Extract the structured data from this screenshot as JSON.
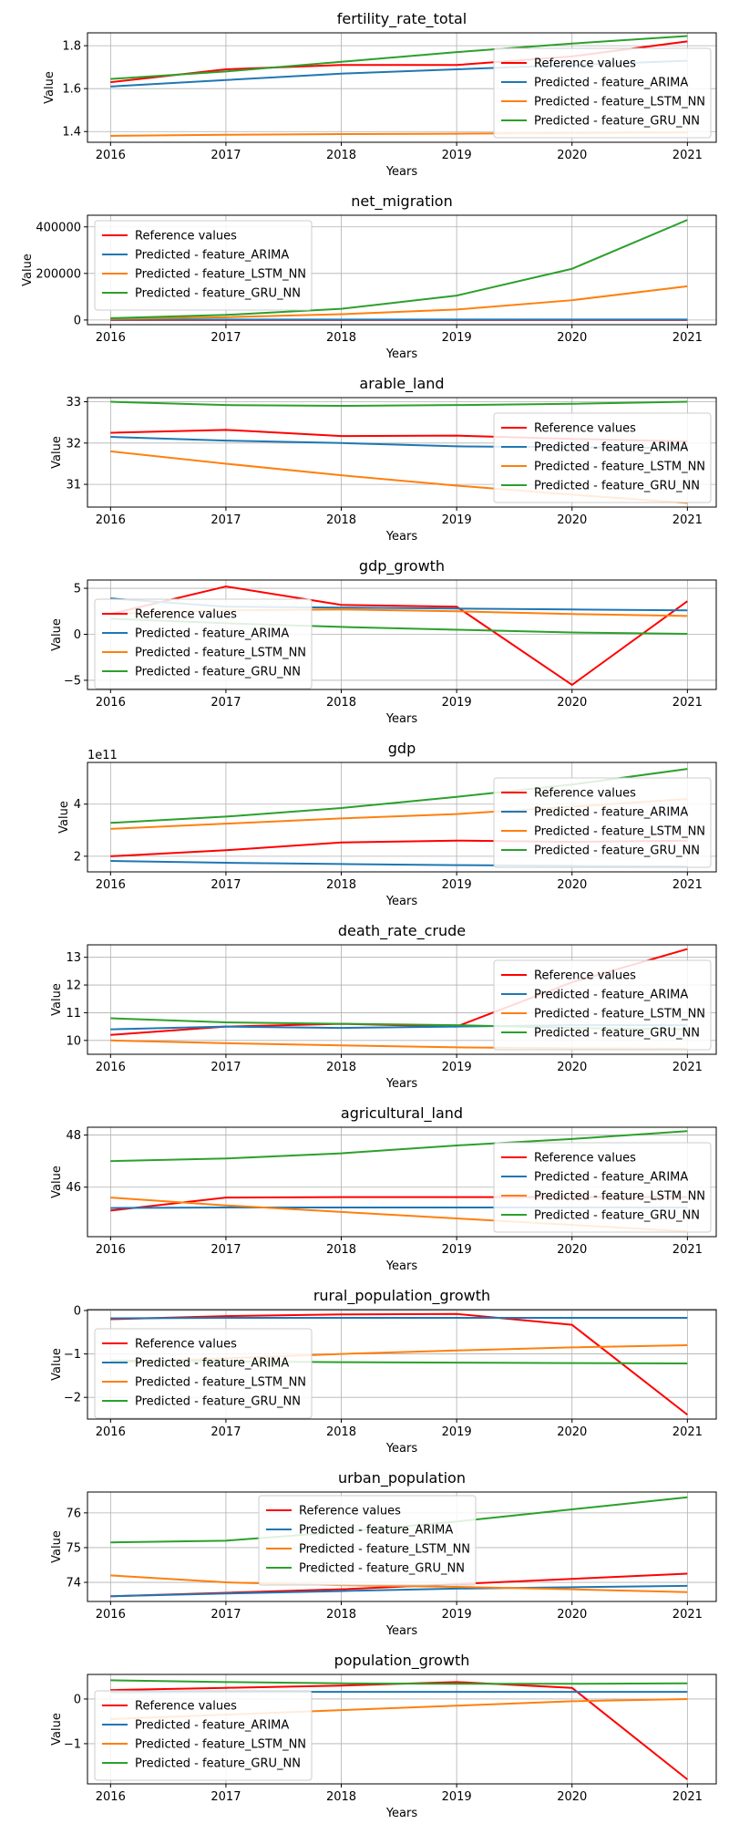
{
  "colors": {
    "reference": "#ff0000",
    "arima": "#1f77b4",
    "lstm": "#ff7f0e",
    "gru": "#2ca02c",
    "grid": "#b0b0b0",
    "axis": "#000000"
  },
  "chart_data": [
    {
      "type": "line",
      "title": "fertility_rate_total",
      "xlabel": "Years",
      "ylabel": "Value",
      "x": [
        2016,
        2017,
        2018,
        2019,
        2020,
        2021
      ],
      "xlim": [
        2015.8,
        2021.25
      ],
      "ylim": [
        1.35,
        1.86
      ],
      "yticks": [
        1.4,
        1.6,
        1.8
      ],
      "ytick_labels": [
        "1.4",
        "1.6",
        "1.8"
      ],
      "y_scale_label": "",
      "legend": "right",
      "grid": true,
      "series": [
        {
          "name": "Reference values",
          "key": "reference",
          "values": [
            1.63,
            1.69,
            1.71,
            1.71,
            1.75,
            1.82
          ]
        },
        {
          "name": "Predicted - feature_ARIMA",
          "key": "arima",
          "values": [
            1.61,
            1.64,
            1.67,
            1.69,
            1.71,
            1.73
          ]
        },
        {
          "name": "Predicted - feature_LSTM_NN",
          "key": "lstm",
          "values": [
            1.38,
            1.385,
            1.388,
            1.39,
            1.393,
            1.396
          ]
        },
        {
          "name": "Predicted - feature_GRU_NN",
          "key": "gru",
          "values": [
            1.645,
            1.68,
            1.725,
            1.77,
            1.81,
            1.845
          ]
        }
      ]
    },
    {
      "type": "line",
      "title": "net_migration",
      "xlabel": "Years",
      "ylabel": "Value",
      "x": [
        2016,
        2017,
        2018,
        2019,
        2020,
        2021
      ],
      "xlim": [
        2015.8,
        2021.25
      ],
      "ylim": [
        -20000,
        450000
      ],
      "yticks": [
        0,
        200000,
        400000
      ],
      "ytick_labels": [
        "0",
        "200000",
        "400000"
      ],
      "y_scale_label": "",
      "legend": "upper-left",
      "grid": true,
      "series": [
        {
          "name": "Reference values",
          "key": "reference",
          "values": [
            0,
            0,
            0,
            0,
            0,
            0
          ]
        },
        {
          "name": "Predicted - feature_ARIMA",
          "key": "arima",
          "values": [
            2000,
            2000,
            2000,
            2000,
            2000,
            2000
          ]
        },
        {
          "name": "Predicted - feature_LSTM_NN",
          "key": "lstm",
          "values": [
            5000,
            12000,
            25000,
            45000,
            85000,
            145000
          ]
        },
        {
          "name": "Predicted - feature_GRU_NN",
          "key": "gru",
          "values": [
            8000,
            22000,
            48000,
            105000,
            220000,
            430000
          ]
        }
      ]
    },
    {
      "type": "line",
      "title": "arable_land",
      "xlabel": "Years",
      "ylabel": "Value",
      "x": [
        2016,
        2017,
        2018,
        2019,
        2020,
        2021
      ],
      "xlim": [
        2015.8,
        2021.25
      ],
      "ylim": [
        30.45,
        33.1
      ],
      "yticks": [
        31,
        32,
        33
      ],
      "ytick_labels": [
        "31",
        "32",
        "33"
      ],
      "y_scale_label": "",
      "legend": "right",
      "grid": true,
      "series": [
        {
          "name": "Reference values",
          "key": "reference",
          "values": [
            32.25,
            32.32,
            32.17,
            32.18,
            32.1,
            32.04
          ]
        },
        {
          "name": "Predicted - feature_ARIMA",
          "key": "arima",
          "values": [
            32.15,
            32.06,
            32.0,
            31.92,
            31.9,
            31.88
          ]
        },
        {
          "name": "Predicted - feature_LSTM_NN",
          "key": "lstm",
          "values": [
            31.8,
            31.5,
            31.22,
            30.97,
            30.75,
            30.55
          ]
        },
        {
          "name": "Predicted - feature_GRU_NN",
          "key": "gru",
          "values": [
            33.0,
            32.92,
            32.9,
            32.92,
            32.95,
            33.0
          ]
        }
      ]
    },
    {
      "type": "line",
      "title": "gdp_growth",
      "xlabel": "Years",
      "ylabel": "Value",
      "x": [
        2016,
        2017,
        2018,
        2019,
        2020,
        2021
      ],
      "xlim": [
        2015.8,
        2021.25
      ],
      "ylim": [
        -6.0,
        5.9
      ],
      "yticks": [
        -5,
        0,
        5
      ],
      "ytick_labels": [
        "−5",
        "0",
        "5"
      ],
      "y_scale_label": "",
      "legend": "left",
      "grid": true,
      "series": [
        {
          "name": "Reference values",
          "key": "reference",
          "values": [
            2.2,
            5.2,
            3.2,
            3.0,
            -5.5,
            3.6
          ]
        },
        {
          "name": "Predicted - feature_ARIMA",
          "key": "arima",
          "values": [
            3.9,
            3.0,
            2.9,
            2.8,
            2.7,
            2.6
          ]
        },
        {
          "name": "Predicted - feature_LSTM_NN",
          "key": "lstm",
          "values": [
            2.2,
            2.6,
            2.7,
            2.5,
            2.2,
            2.0
          ]
        },
        {
          "name": "Predicted - feature_GRU_NN",
          "key": "gru",
          "values": [
            1.7,
            1.2,
            0.8,
            0.5,
            0.2,
            0.05
          ]
        }
      ]
    },
    {
      "type": "line",
      "title": "gdp",
      "xlabel": "Years",
      "ylabel": "Value",
      "x": [
        2016,
        2017,
        2018,
        2019,
        2020,
        2021
      ],
      "xlim": [
        2015.8,
        2021.25
      ],
      "ylim": [
        140000000000.0,
        560000000000.0
      ],
      "yticks": [
        200000000000.0,
        400000000000.0
      ],
      "ytick_labels": [
        "2",
        "4"
      ],
      "y_scale_label": "1e11",
      "legend": "right",
      "grid": true,
      "series": [
        {
          "name": "Reference values",
          "key": "reference",
          "values": [
            200000000000.0,
            223000000000.0,
            253000000000.0,
            260000000000.0,
            255000000000.0,
            260000000000.0
          ]
        },
        {
          "name": "Predicted - feature_ARIMA",
          "key": "arima",
          "values": [
            182000000000.0,
            175000000000.0,
            170000000000.0,
            166000000000.0,
            163000000000.0,
            160000000000.0
          ]
        },
        {
          "name": "Predicted - feature_LSTM_NN",
          "key": "lstm",
          "values": [
            305000000000.0,
            325000000000.0,
            345000000000.0,
            362000000000.0,
            390000000000.0,
            420000000000.0
          ]
        },
        {
          "name": "Predicted - feature_GRU_NN",
          "key": "gru",
          "values": [
            328000000000.0,
            352000000000.0,
            385000000000.0,
            428000000000.0,
            475000000000.0,
            535000000000.0
          ]
        }
      ]
    },
    {
      "type": "line",
      "title": "death_rate_crude",
      "xlabel": "Years",
      "ylabel": "Value",
      "x": [
        2016,
        2017,
        2018,
        2019,
        2020,
        2021
      ],
      "xlim": [
        2015.8,
        2021.25
      ],
      "ylim": [
        9.5,
        13.45
      ],
      "yticks": [
        10,
        11,
        12,
        13
      ],
      "ytick_labels": [
        "10",
        "11",
        "12",
        "13"
      ],
      "y_scale_label": "",
      "legend": "right",
      "grid": true,
      "series": [
        {
          "name": "Reference values",
          "key": "reference",
          "values": [
            10.2,
            10.5,
            10.6,
            10.5,
            12.1,
            13.3
          ]
        },
        {
          "name": "Predicted - feature_ARIMA",
          "key": "arima",
          "values": [
            10.4,
            10.5,
            10.45,
            10.5,
            10.55,
            10.55
          ]
        },
        {
          "name": "Predicted - feature_LSTM_NN",
          "key": "lstm",
          "values": [
            10.0,
            9.9,
            9.82,
            9.75,
            9.72,
            9.7
          ]
        },
        {
          "name": "Predicted - feature_GRU_NN",
          "key": "gru",
          "values": [
            10.8,
            10.65,
            10.6,
            10.55,
            10.45,
            10.4
          ]
        }
      ]
    },
    {
      "type": "line",
      "title": "agricultural_land",
      "xlabel": "Years",
      "ylabel": "Value",
      "x": [
        2016,
        2017,
        2018,
        2019,
        2020,
        2021
      ],
      "xlim": [
        2015.8,
        2021.25
      ],
      "ylim": [
        44.1,
        48.3
      ],
      "yticks": [
        46,
        48
      ],
      "ytick_labels": [
        "46",
        "48"
      ],
      "y_scale_label": "",
      "legend": "right",
      "grid": true,
      "series": [
        {
          "name": "Reference values",
          "key": "reference",
          "values": [
            45.1,
            45.6,
            45.62,
            45.62,
            45.62,
            45.62
          ]
        },
        {
          "name": "Predicted - feature_ARIMA",
          "key": "arima",
          "values": [
            45.2,
            45.22,
            45.22,
            45.22,
            45.22,
            45.22
          ]
        },
        {
          "name": "Predicted - feature_LSTM_NN",
          "key": "lstm",
          "values": [
            45.6,
            45.3,
            45.05,
            44.8,
            44.55,
            44.3
          ]
        },
        {
          "name": "Predicted - feature_GRU_NN",
          "key": "gru",
          "values": [
            47.0,
            47.1,
            47.3,
            47.6,
            47.85,
            48.15
          ]
        }
      ]
    },
    {
      "type": "line",
      "title": "rural_population_growth",
      "xlabel": "Years",
      "ylabel": "Value",
      "x": [
        2016,
        2017,
        2018,
        2019,
        2020,
        2021
      ],
      "xlim": [
        2015.8,
        2021.25
      ],
      "ylim": [
        -2.5,
        0.02
      ],
      "yticks": [
        -2,
        -1,
        0
      ],
      "ytick_labels": [
        "−2",
        "−1",
        "0"
      ],
      "y_scale_label": "",
      "legend": "left",
      "grid": true,
      "series": [
        {
          "name": "Reference values",
          "key": "reference",
          "values": [
            -0.2,
            -0.13,
            -0.09,
            -0.08,
            -0.33,
            -2.4
          ]
        },
        {
          "name": "Predicted - feature_ARIMA",
          "key": "arima",
          "values": [
            -0.18,
            -0.17,
            -0.17,
            -0.17,
            -0.17,
            -0.17
          ]
        },
        {
          "name": "Predicted - feature_LSTM_NN",
          "key": "lstm",
          "values": [
            -1.2,
            -1.1,
            -1.0,
            -0.92,
            -0.85,
            -0.8
          ]
        },
        {
          "name": "Predicted - feature_GRU_NN",
          "key": "gru",
          "values": [
            -1.15,
            -1.17,
            -1.19,
            -1.2,
            -1.21,
            -1.22
          ]
        }
      ]
    },
    {
      "type": "line",
      "title": "urban_population",
      "xlabel": "Years",
      "ylabel": "Value",
      "x": [
        2016,
        2017,
        2018,
        2019,
        2020,
        2021
      ],
      "xlim": [
        2015.8,
        2021.25
      ],
      "ylim": [
        73.45,
        76.6
      ],
      "yticks": [
        74,
        75,
        76
      ],
      "ytick_labels": [
        "74",
        "75",
        "76"
      ],
      "y_scale_label": "",
      "legend": "center",
      "grid": true,
      "series": [
        {
          "name": "Reference values",
          "key": "reference",
          "values": [
            73.6,
            73.7,
            73.8,
            73.95,
            74.1,
            74.25
          ]
        },
        {
          "name": "Predicted - feature_ARIMA",
          "key": "arima",
          "values": [
            73.6,
            73.68,
            73.75,
            73.82,
            73.86,
            73.9
          ]
        },
        {
          "name": "Predicted - feature_LSTM_NN",
          "key": "lstm",
          "values": [
            74.2,
            74.0,
            73.92,
            73.87,
            73.8,
            73.72
          ]
        },
        {
          "name": "Predicted - feature_GRU_NN",
          "key": "gru",
          "values": [
            75.15,
            75.2,
            75.45,
            75.75,
            76.1,
            76.45
          ]
        }
      ]
    },
    {
      "type": "line",
      "title": "population_growth",
      "xlabel": "Years",
      "ylabel": "Value",
      "x": [
        2016,
        2017,
        2018,
        2019,
        2020,
        2021
      ],
      "xlim": [
        2015.8,
        2021.25
      ],
      "ylim": [
        -1.9,
        0.55
      ],
      "yticks": [
        -1,
        0
      ],
      "ytick_labels": [
        "−1",
        "0"
      ],
      "y_scale_label": "",
      "legend": "lower-left",
      "grid": true,
      "series": [
        {
          "name": "Reference values",
          "key": "reference",
          "values": [
            0.2,
            0.25,
            0.3,
            0.38,
            0.25,
            -1.8
          ]
        },
        {
          "name": "Predicted - feature_ARIMA",
          "key": "arima",
          "values": [
            0.15,
            0.16,
            0.16,
            0.16,
            0.16,
            0.16
          ]
        },
        {
          "name": "Predicted - feature_LSTM_NN",
          "key": "lstm",
          "values": [
            -0.45,
            -0.35,
            -0.25,
            -0.15,
            -0.05,
            0.0
          ]
        },
        {
          "name": "Predicted - feature_GRU_NN",
          "key": "gru",
          "values": [
            0.42,
            0.38,
            0.35,
            0.34,
            0.34,
            0.35
          ]
        }
      ]
    }
  ]
}
